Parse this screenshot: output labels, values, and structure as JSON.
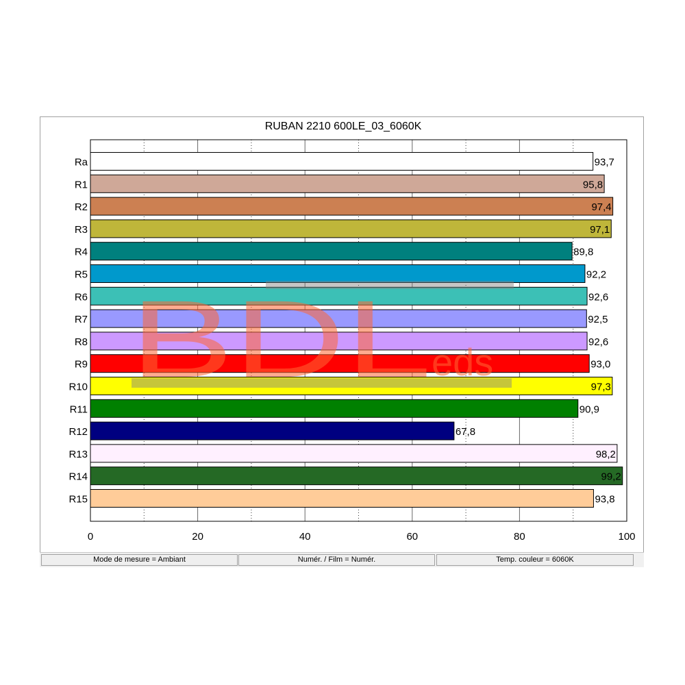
{
  "chart_data": {
    "type": "bar",
    "orientation": "horizontal",
    "title": "RUBAN 2210 600LE_03_6060K",
    "categories": [
      "Ra",
      "R1",
      "R2",
      "R3",
      "R4",
      "R5",
      "R6",
      "R7",
      "R8",
      "R9",
      "R10",
      "R11",
      "R12",
      "R13",
      "R14",
      "R15"
    ],
    "values": [
      93.7,
      95.8,
      97.4,
      97.1,
      89.8,
      92.2,
      92.6,
      92.5,
      92.6,
      93.0,
      97.3,
      90.9,
      67.8,
      98.2,
      99.2,
      93.8
    ],
    "value_labels": [
      "93,7",
      "95,8",
      "97,4",
      "97,1",
      "89,8",
      "92,2",
      "92,6",
      "92,5",
      "92,6",
      "93,0",
      "97,3",
      "90,9",
      "67,8",
      "98,2",
      "99,2",
      "93,8"
    ],
    "bar_colors": [
      "#ffffff",
      "#cfa898",
      "#cc8052",
      "#bfb63a",
      "#00807e",
      "#0099cc",
      "#3cc0b6",
      "#9999ff",
      "#cc99ff",
      "#ff0000",
      "#ffff00",
      "#008000",
      "#000080",
      "#fff0ff",
      "#256925",
      "#ffcc99"
    ],
    "label_inside": [
      false,
      true,
      true,
      true,
      false,
      false,
      false,
      false,
      false,
      false,
      true,
      false,
      false,
      true,
      true,
      false
    ],
    "xlim": [
      0,
      100
    ],
    "xticks": [
      "0",
      "20",
      "40",
      "60",
      "80",
      "100"
    ],
    "grid": true,
    "grid_color": "#000000"
  },
  "watermark": {
    "big": "BDL",
    "small": "eds",
    "color": "#ff6633"
  },
  "status": {
    "mode": "Mode de mesure = Ambiant",
    "film": "Numér. / Film = Numér.",
    "temp": "Temp. couleur = 6060K"
  }
}
